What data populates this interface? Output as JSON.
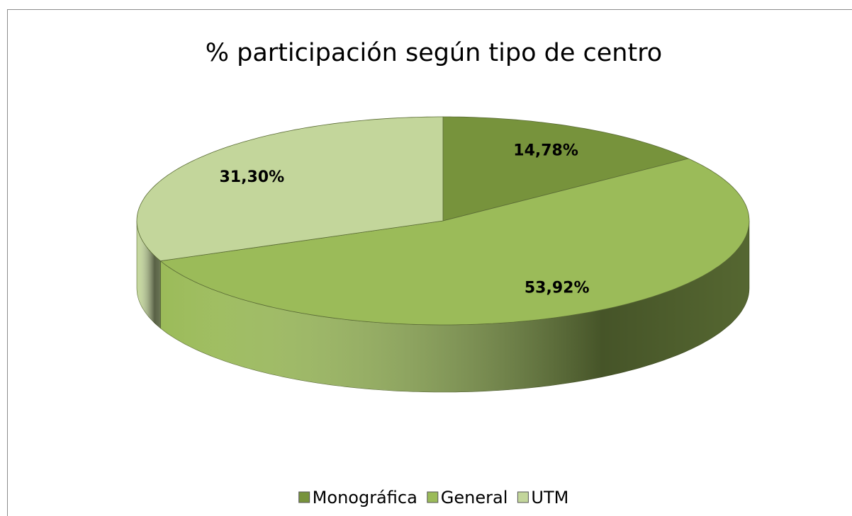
{
  "chart_data": {
    "type": "pie",
    "title": "% participación según tipo de centro",
    "categories": [
      "Monográfica",
      "General",
      "UTM"
    ],
    "values": [
      14.78,
      53.92,
      31.3
    ],
    "value_labels": [
      "14,78%",
      "53,92%",
      "31,30%"
    ],
    "colors": [
      "#77933c",
      "#9bbb59",
      "#c3d69b"
    ],
    "legend": "bottom"
  }
}
